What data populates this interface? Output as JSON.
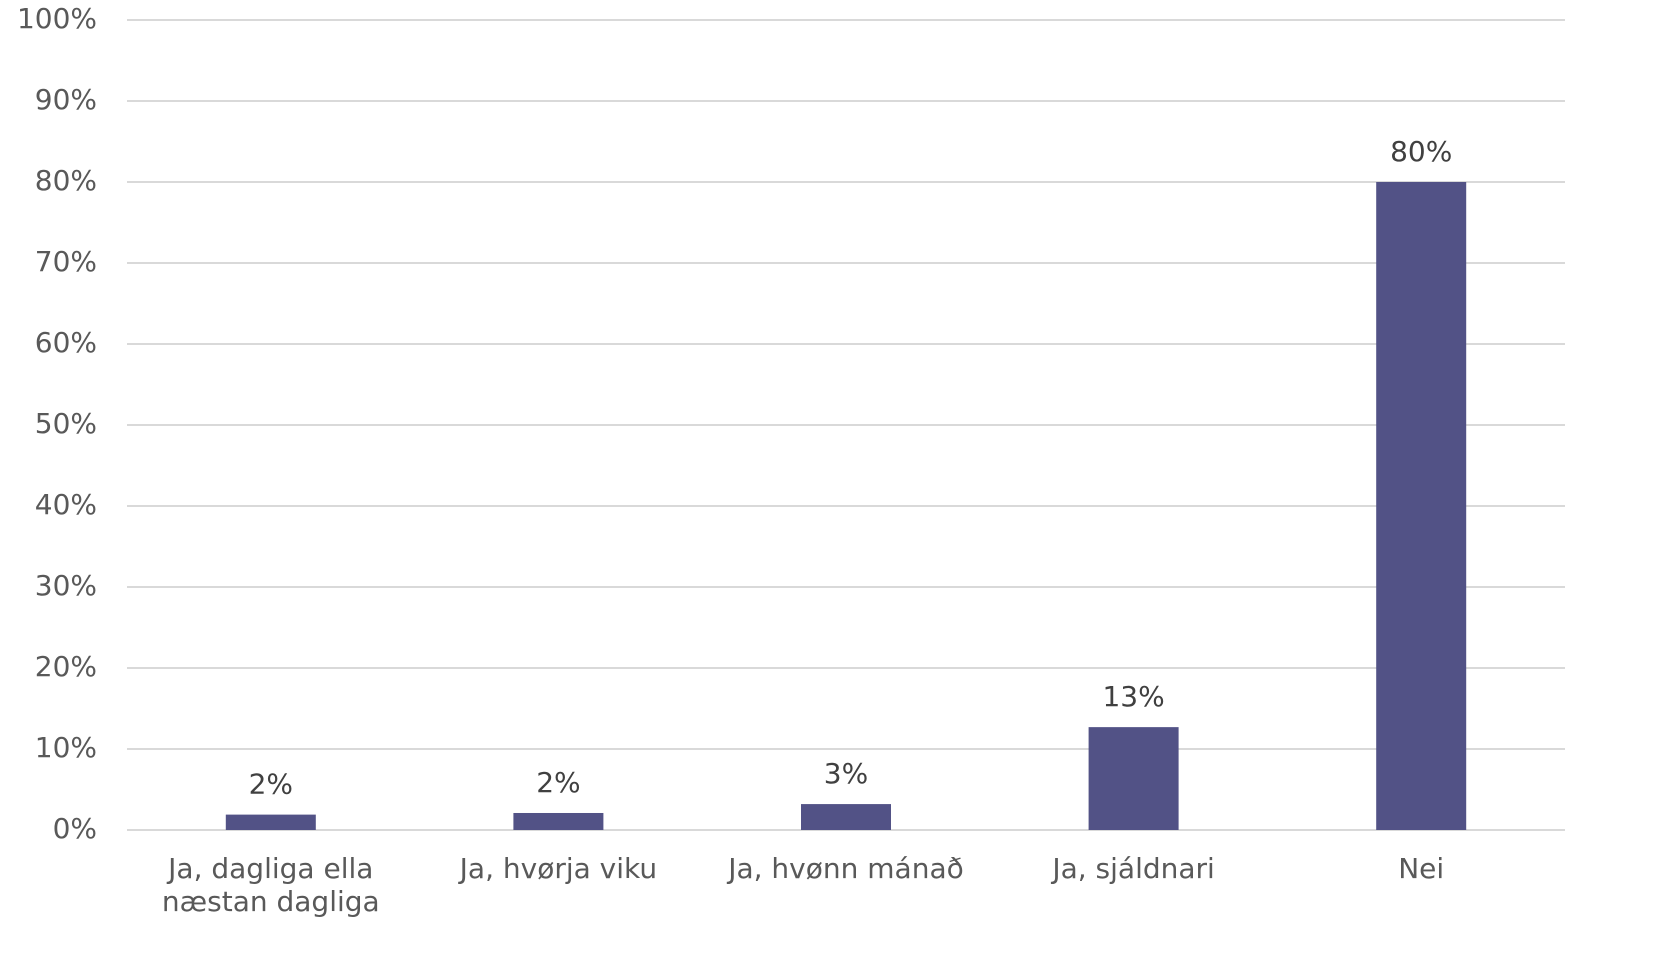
{
  "chart_data": {
    "type": "bar",
    "categories": [
      "Ja, dagliga ella næstan dagliga",
      "Ja, hvørja viku",
      "Ja, hvønn mánað",
      "Ja, sjáldnari",
      "Nei"
    ],
    "values": [
      1.9,
      2.1,
      3.2,
      12.7,
      80
    ],
    "value_labels": [
      "2%",
      "2%",
      "3%",
      "13%",
      "80%"
    ],
    "color": "#525286",
    "ylim": [
      0,
      100
    ],
    "yticks": [
      {
        "value": 0,
        "label": "0%"
      },
      {
        "value": 10,
        "label": "10%"
      },
      {
        "value": 20,
        "label": "20%"
      },
      {
        "value": 30,
        "label": "30%"
      },
      {
        "value": 40,
        "label": "40%"
      },
      {
        "value": 50,
        "label": "50%"
      },
      {
        "value": 60,
        "label": "60%"
      },
      {
        "value": 70,
        "label": "70%"
      },
      {
        "value": 80,
        "label": "80%"
      },
      {
        "value": 90,
        "label": "90%"
      },
      {
        "value": 100,
        "label": "100%"
      }
    ],
    "grid": true
  }
}
